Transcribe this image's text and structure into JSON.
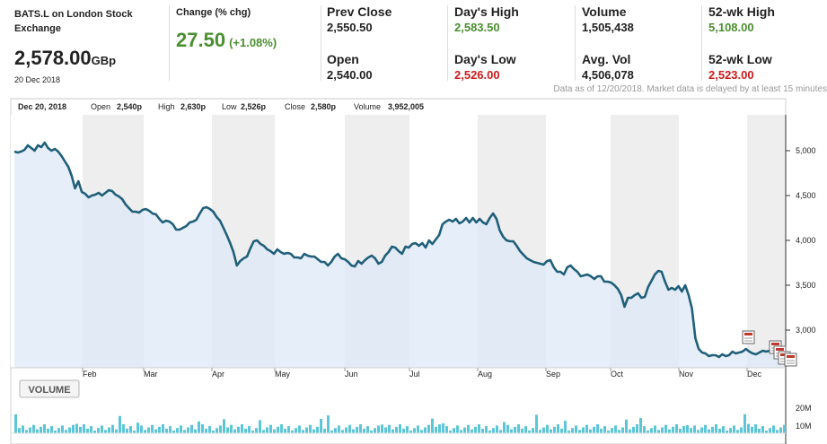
{
  "quote": {
    "ticker": "BATS.L on London Stock Exchange",
    "price": "2,578.00",
    "currency": "GBp",
    "date": "20 Dec 2018",
    "change_label": "Change (% chg)",
    "change": "27.50",
    "change_pct": "(+1.08%)",
    "stats": {
      "prev_close_label": "Prev Close",
      "prev_close": "2,550.50",
      "open_label": "Open",
      "open": "2,540.00",
      "day_high_label": "Day's High",
      "day_high": "2,583.50",
      "day_low_label": "Day's Low",
      "day_low": "2,526.00",
      "volume_label": "Volume",
      "volume": "1,505,438",
      "avg_vol_label": "Avg. Vol",
      "avg_vol": "4,506,078",
      "wk52_high_label": "52-wk High",
      "wk52_high": "5,108.00",
      "wk52_low_label": "52-wk Low",
      "wk52_low": "2,523.00"
    },
    "disclaimer": "Data as of 12/20/2018. Market data is delayed by at least 15 minutes"
  },
  "ohlc_bar": {
    "date": "Dec 20, 2018",
    "open_label": "Open",
    "open": "2,540p",
    "high_label": "High",
    "high": "2,630p",
    "low_label": "Low",
    "low": "2,526p",
    "close_label": "Close",
    "close": "2,580p",
    "volume_label": "Volume",
    "volume": "3,952,005"
  },
  "volume_button": "VOLUME",
  "colors": {
    "line": "#1f5f7a",
    "area": "#dde9f7",
    "volume": "#5cc6d8",
    "green": "#4a8f2f",
    "red": "#cc1a1a"
  },
  "chart_data": {
    "type": "line",
    "series": [
      {
        "values": [
          4990,
          4980,
          4990,
          5010,
          5060,
          5030,
          5000,
          5060,
          5040,
          5090,
          5030,
          5000,
          5020,
          4990,
          4940,
          4880,
          4820,
          4720,
          4580,
          4660,
          4540,
          4520,
          4480,
          4500,
          4510,
          4530,
          4500,
          4530,
          4560,
          4550,
          4510,
          4490,
          4460,
          4400,
          4360,
          4320,
          4320,
          4310,
          4340,
          4350,
          4330,
          4300,
          4290,
          4240,
          4200,
          4220,
          4210,
          4180,
          4120,
          4120,
          4140,
          4160,
          4200,
          4210,
          4230,
          4300,
          4360,
          4370,
          4350,
          4320,
          4260,
          4220,
          4140,
          4060,
          3970,
          3870,
          3720,
          3770,
          3800,
          3820,
          3910,
          3990,
          4000,
          3960,
          3940,
          3900,
          3880,
          3850,
          3900,
          3870,
          3850,
          3860,
          3850,
          3810,
          3810,
          3800,
          3850,
          3830,
          3820,
          3820,
          3790,
          3760,
          3760,
          3720,
          3760,
          3820,
          3850,
          3800,
          3790,
          3760,
          3720,
          3710,
          3770,
          3740,
          3780,
          3810,
          3830,
          3800,
          3740,
          3760,
          3830,
          3870,
          3930,
          3920,
          3880,
          3850,
          3930,
          3920,
          3960,
          3970,
          3940,
          3970,
          3920,
          4000,
          3960,
          4010,
          4060,
          4180,
          4210,
          4230,
          4210,
          4240,
          4190,
          4210,
          4250,
          4200,
          4250,
          4200,
          4240,
          4200,
          4180,
          4250,
          4300,
          4240,
          4110,
          4040,
          4000,
          3990,
          3990,
          3940,
          3880,
          3840,
          3800,
          3780,
          3760,
          3750,
          3740,
          3730,
          3770,
          3780,
          3700,
          3650,
          3650,
          3620,
          3700,
          3720,
          3680,
          3650,
          3600,
          3610,
          3620,
          3600,
          3570,
          3600,
          3600,
          3540,
          3540,
          3530,
          3500,
          3460,
          3390,
          3260,
          3360,
          3360,
          3390,
          3410,
          3360,
          3370,
          3480,
          3550,
          3620,
          3660,
          3650,
          3540,
          3450,
          3470,
          3450,
          3490,
          3430,
          3500,
          3390,
          3240,
          2910,
          2790,
          2750,
          2740,
          2710,
          2720,
          2720,
          2700,
          2730,
          2710,
          2720,
          2760,
          2740,
          2750,
          2760,
          2790,
          2760,
          2740,
          2730,
          2750,
          2770,
          2760,
          2770,
          2780,
          2750,
          2740,
          2780
        ]
      }
    ],
    "x_labels": [
      "Feb",
      "Mar",
      "Apr",
      "May",
      "Jun",
      "Jul",
      "Aug",
      "Sep",
      "Oct",
      "Nov",
      "Dec"
    ],
    "y_ticks": [
      3000,
      3500,
      4000,
      4500,
      5000
    ],
    "y_tick_labels": [
      "3,000",
      "3,500",
      "4,000",
      "4,500",
      "5,000"
    ],
    "ylim": [
      2580,
      5400
    ],
    "volume_axis_labels": [
      "20M",
      "10M"
    ]
  }
}
